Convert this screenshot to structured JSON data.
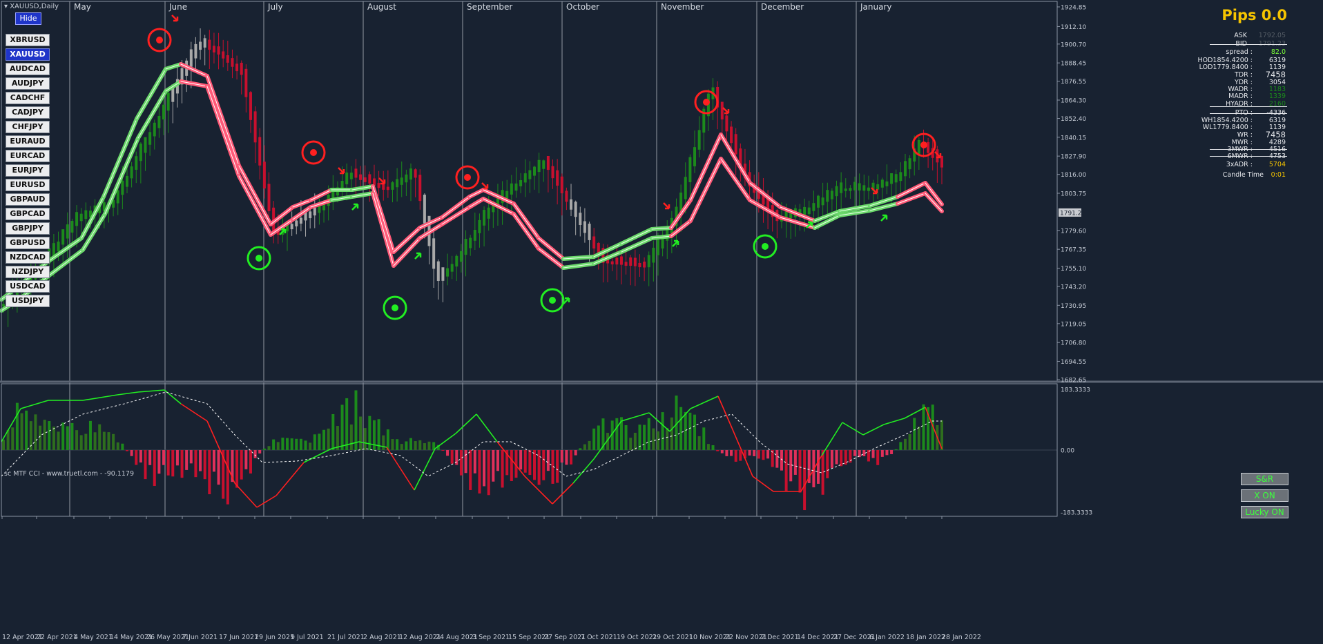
{
  "chart": {
    "symbol_title": "XAUUSD,Daily",
    "month_labels": [
      "May",
      "June",
      "July",
      "August",
      "September",
      "October",
      "November",
      "December",
      "January"
    ],
    "price_ticks": [
      "1924.85",
      "1912.10",
      "1900.70",
      "1888.45",
      "1876.55",
      "1864.30",
      "1852.40",
      "1840.15",
      "1827.90",
      "1816.00",
      "1803.75",
      "1791.23",
      "1779.60",
      "1767.35",
      "1755.10",
      "1743.20",
      "1730.95",
      "1719.05",
      "1706.80",
      "1694.55",
      "1682.65"
    ],
    "date_ticks": [
      "12 Apr 2021",
      "22 Apr 2021",
      "4 May 2021",
      "14 May 2021",
      "26 May 2021",
      "7 Jun 2021",
      "17 Jun 2021",
      "29 Jun 2021",
      "9 Jul 2021",
      "21 Jul 2021",
      "2 Aug 2021",
      "12 Aug 2021",
      "24 Aug 2021",
      "3 Sep 2021",
      "15 Sep 2021",
      "27 Sep 2021",
      "7 Oct 2021",
      "19 Oct 2021",
      "29 Oct 2021",
      "10 Nov 2021",
      "22 Nov 2021",
      "2 Dec 2021",
      "14 Dec 2021",
      "27 Dec 2021",
      "6 Jan 2022",
      "18 Jan 2022",
      "28 Jan 2022"
    ],
    "current_price": "1791.23",
    "cci_title": "sc MTF CCI - www.truetl.com - -90.1179",
    "cci_ticks": [
      "183.3333",
      "0.00",
      "-183.3333"
    ],
    "colors": {
      "background": "#182231",
      "bull": "#1c8a1c",
      "bear": "#c8102e",
      "neutral": "#a8a8a8",
      "signal_green": "#22ee22",
      "signal_red": "#ff2020",
      "pips": "#f5c400"
    }
  },
  "symbols": {
    "hide_label": "Hide",
    "items": [
      "XBRUSD",
      "XAUUSD",
      "AUDCAD",
      "AUDJPY",
      "CADCHF",
      "CADJPY",
      "CHFJPY",
      "EURAUD",
      "EURCAD",
      "EURJPY",
      "EURUSD",
      "GBPAUD",
      "GBPCAD",
      "GBPJPY",
      "GBPUSD",
      "NZDCAD",
      "NZDJPY",
      "USDCAD",
      "USDJPY"
    ],
    "active": "XAUUSD"
  },
  "stats": {
    "pips": "Pips 0.0",
    "ask_label": "ASK",
    "ask_value": "1792.05",
    "bid_label": "BID",
    "bid_value": "1791.23",
    "spread_label": "spread :",
    "spread_value": "82.0",
    "hod_label": "HOD1854.4200 :",
    "hod_value": "6319",
    "lod_label": "LOD1779.8400 :",
    "lod_value": "1139",
    "tdr_label": "TDR :",
    "tdr_value": "7458",
    "ydr_label": "YDR :",
    "ydr_value": "3054",
    "wadr_label": "WADR :",
    "wadr_value": "1183",
    "madr_label": "MADR :",
    "madr_value": "1339",
    "hyadr_label": "HYADR :",
    "hyadr_value": "2160",
    "pto_label": "PTO :",
    "pto_value": "-4336",
    "wh_label": "WH1854.4200 :",
    "wh_value": "6319",
    "wl_label": "WL1779.8400 :",
    "wl_value": "1139",
    "wr_label": "WR :",
    "wr_value": "7458",
    "mwr_label": "MWR :",
    "mwr_value": "4289",
    "mwr3_label": "3MWR :",
    "mwr3_value": "4516",
    "mwr6_label": "6MWR :",
    "mwr6_value": "4753",
    "adr3_label": "3xADR :",
    "adr3_value": "5704",
    "candle_label": "Candle Time",
    "candle_value": "0:01"
  },
  "buttons": {
    "sr": "S&R",
    "x_on": "X ON",
    "lucky_on": "Lucky ON"
  }
}
